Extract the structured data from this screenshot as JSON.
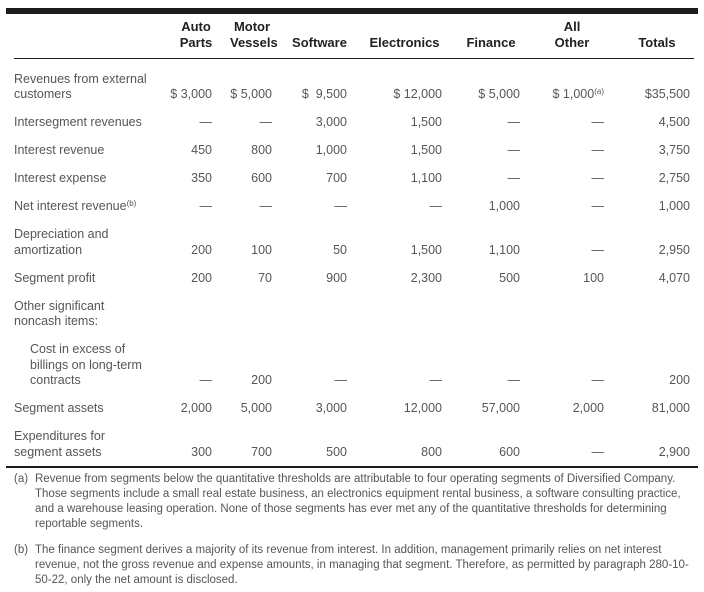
{
  "colors": {
    "rule": "#1a1b1e",
    "body_text": "#54565c",
    "heading_text": "#202126",
    "background": "#ffffff"
  },
  "table": {
    "columns": [
      "Auto\nParts",
      "Motor\nVessels",
      "Software",
      "Electronics",
      "Finance",
      "All\nOther",
      "Totals"
    ],
    "rows": [
      {
        "label": "Revenues from external\ncustomers",
        "indent": false,
        "values": [
          "$ 3,000",
          "$ 5,000",
          "$  9,500",
          "$ 12,000",
          "$ 5,000",
          "$ 1,000^(a)",
          "$35,500"
        ]
      },
      {
        "label": "Intersegment revenues",
        "indent": false,
        "values": [
          "—",
          "—",
          "3,000",
          "1,500",
          "—",
          "—",
          "4,500"
        ]
      },
      {
        "label": "Interest revenue",
        "indent": false,
        "values": [
          "450",
          "800",
          "1,000",
          "1,500",
          "—",
          "—",
          "3,750"
        ]
      },
      {
        "label": "Interest expense",
        "indent": false,
        "values": [
          "350",
          "600",
          "700",
          "1,100",
          "—",
          "—",
          "2,750"
        ]
      },
      {
        "label": "Net interest revenue^(b)",
        "indent": false,
        "values": [
          "—",
          "—",
          "—",
          "—",
          "1,000",
          "—",
          "1,000"
        ]
      },
      {
        "label": "Depreciation and\namortization",
        "indent": false,
        "values": [
          "200",
          "100",
          "50",
          "1,500",
          "1,100",
          "—",
          "2,950"
        ]
      },
      {
        "label": "Segment profit",
        "indent": false,
        "values": [
          "200",
          "70",
          "900",
          "2,300",
          "500",
          "100",
          "4,070"
        ]
      },
      {
        "label": "Other significant\nnoncash items:",
        "indent": false,
        "values": [
          "",
          "",
          "",
          "",
          "",
          "",
          ""
        ]
      },
      {
        "label": "Cost in excess of\nbillings on long-term\ncontracts",
        "indent": true,
        "values": [
          "—",
          "200",
          "—",
          "—",
          "—",
          "—",
          "200"
        ]
      },
      {
        "label": "Segment assets",
        "indent": false,
        "values": [
          "2,000",
          "5,000",
          "3,000",
          "12,000",
          "57,000",
          "2,000",
          "81,000"
        ]
      },
      {
        "label": "Expenditures for\nsegment assets",
        "indent": false,
        "values": [
          "300",
          "700",
          "500",
          "800",
          "600",
          "—",
          "2,900"
        ]
      }
    ]
  },
  "footnotes": [
    {
      "label": "(a)",
      "text": "Revenue from segments below the quantitative thresholds are attributable to four operating segments of Diversified Company. Those segments include a small real estate business, an electronics equipment rental business, a software consulting practice, and a warehouse leasing operation. None of those segments has ever met any of the quantitative thresholds for determining reportable segments."
    },
    {
      "label": "(b)",
      "text": "The finance segment derives a majority of its revenue from interest. In addition, management primarily relies on net interest revenue, not the gross revenue and expense amounts, in managing that segment. Therefore, as permitted by paragraph 280-10-50-22, only the net amount is disclosed."
    }
  ]
}
